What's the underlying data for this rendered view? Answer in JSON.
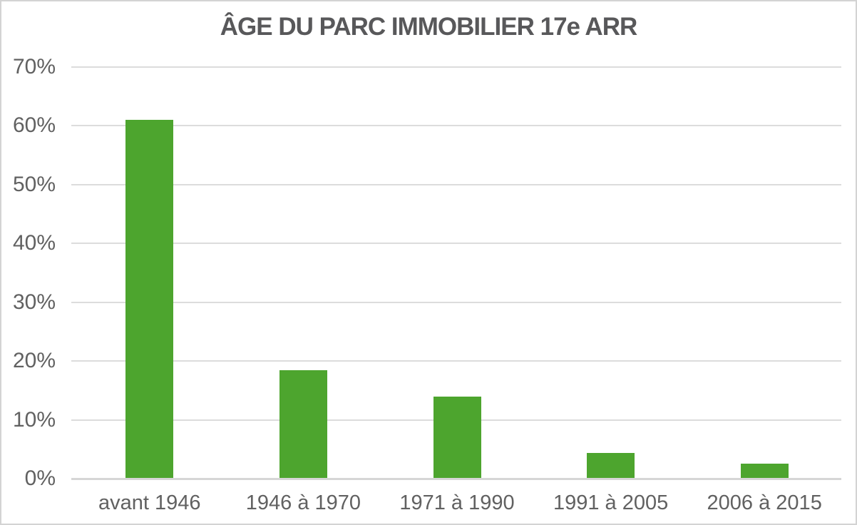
{
  "chart_data": {
    "type": "bar",
    "title": "ÂGE DU PARC IMMOBILIER 17e ARR",
    "categories": [
      "avant 1946",
      "1946 à 1970",
      "1971 à 1990",
      "1991 à 2005",
      "2006 à 2015"
    ],
    "values": [
      61,
      18.4,
      14,
      4.4,
      2.5
    ],
    "unit": "%",
    "xlabel": "",
    "ylabel": "",
    "ylim": [
      0,
      70
    ],
    "ytick_step": 10,
    "ytick_labels": [
      "0%",
      "10%",
      "20%",
      "30%",
      "40%",
      "50%",
      "60%",
      "70%"
    ],
    "grid": true,
    "legend": "none",
    "bar_color": "#4da52e",
    "title_color": "#58585a",
    "axis_label_color": "#616161",
    "gridline_color": "#dcdcdc",
    "axis_line_color": "#d6d6d6",
    "frame_border_color": "#d3d3d3",
    "background_color": "#ffffff"
  }
}
